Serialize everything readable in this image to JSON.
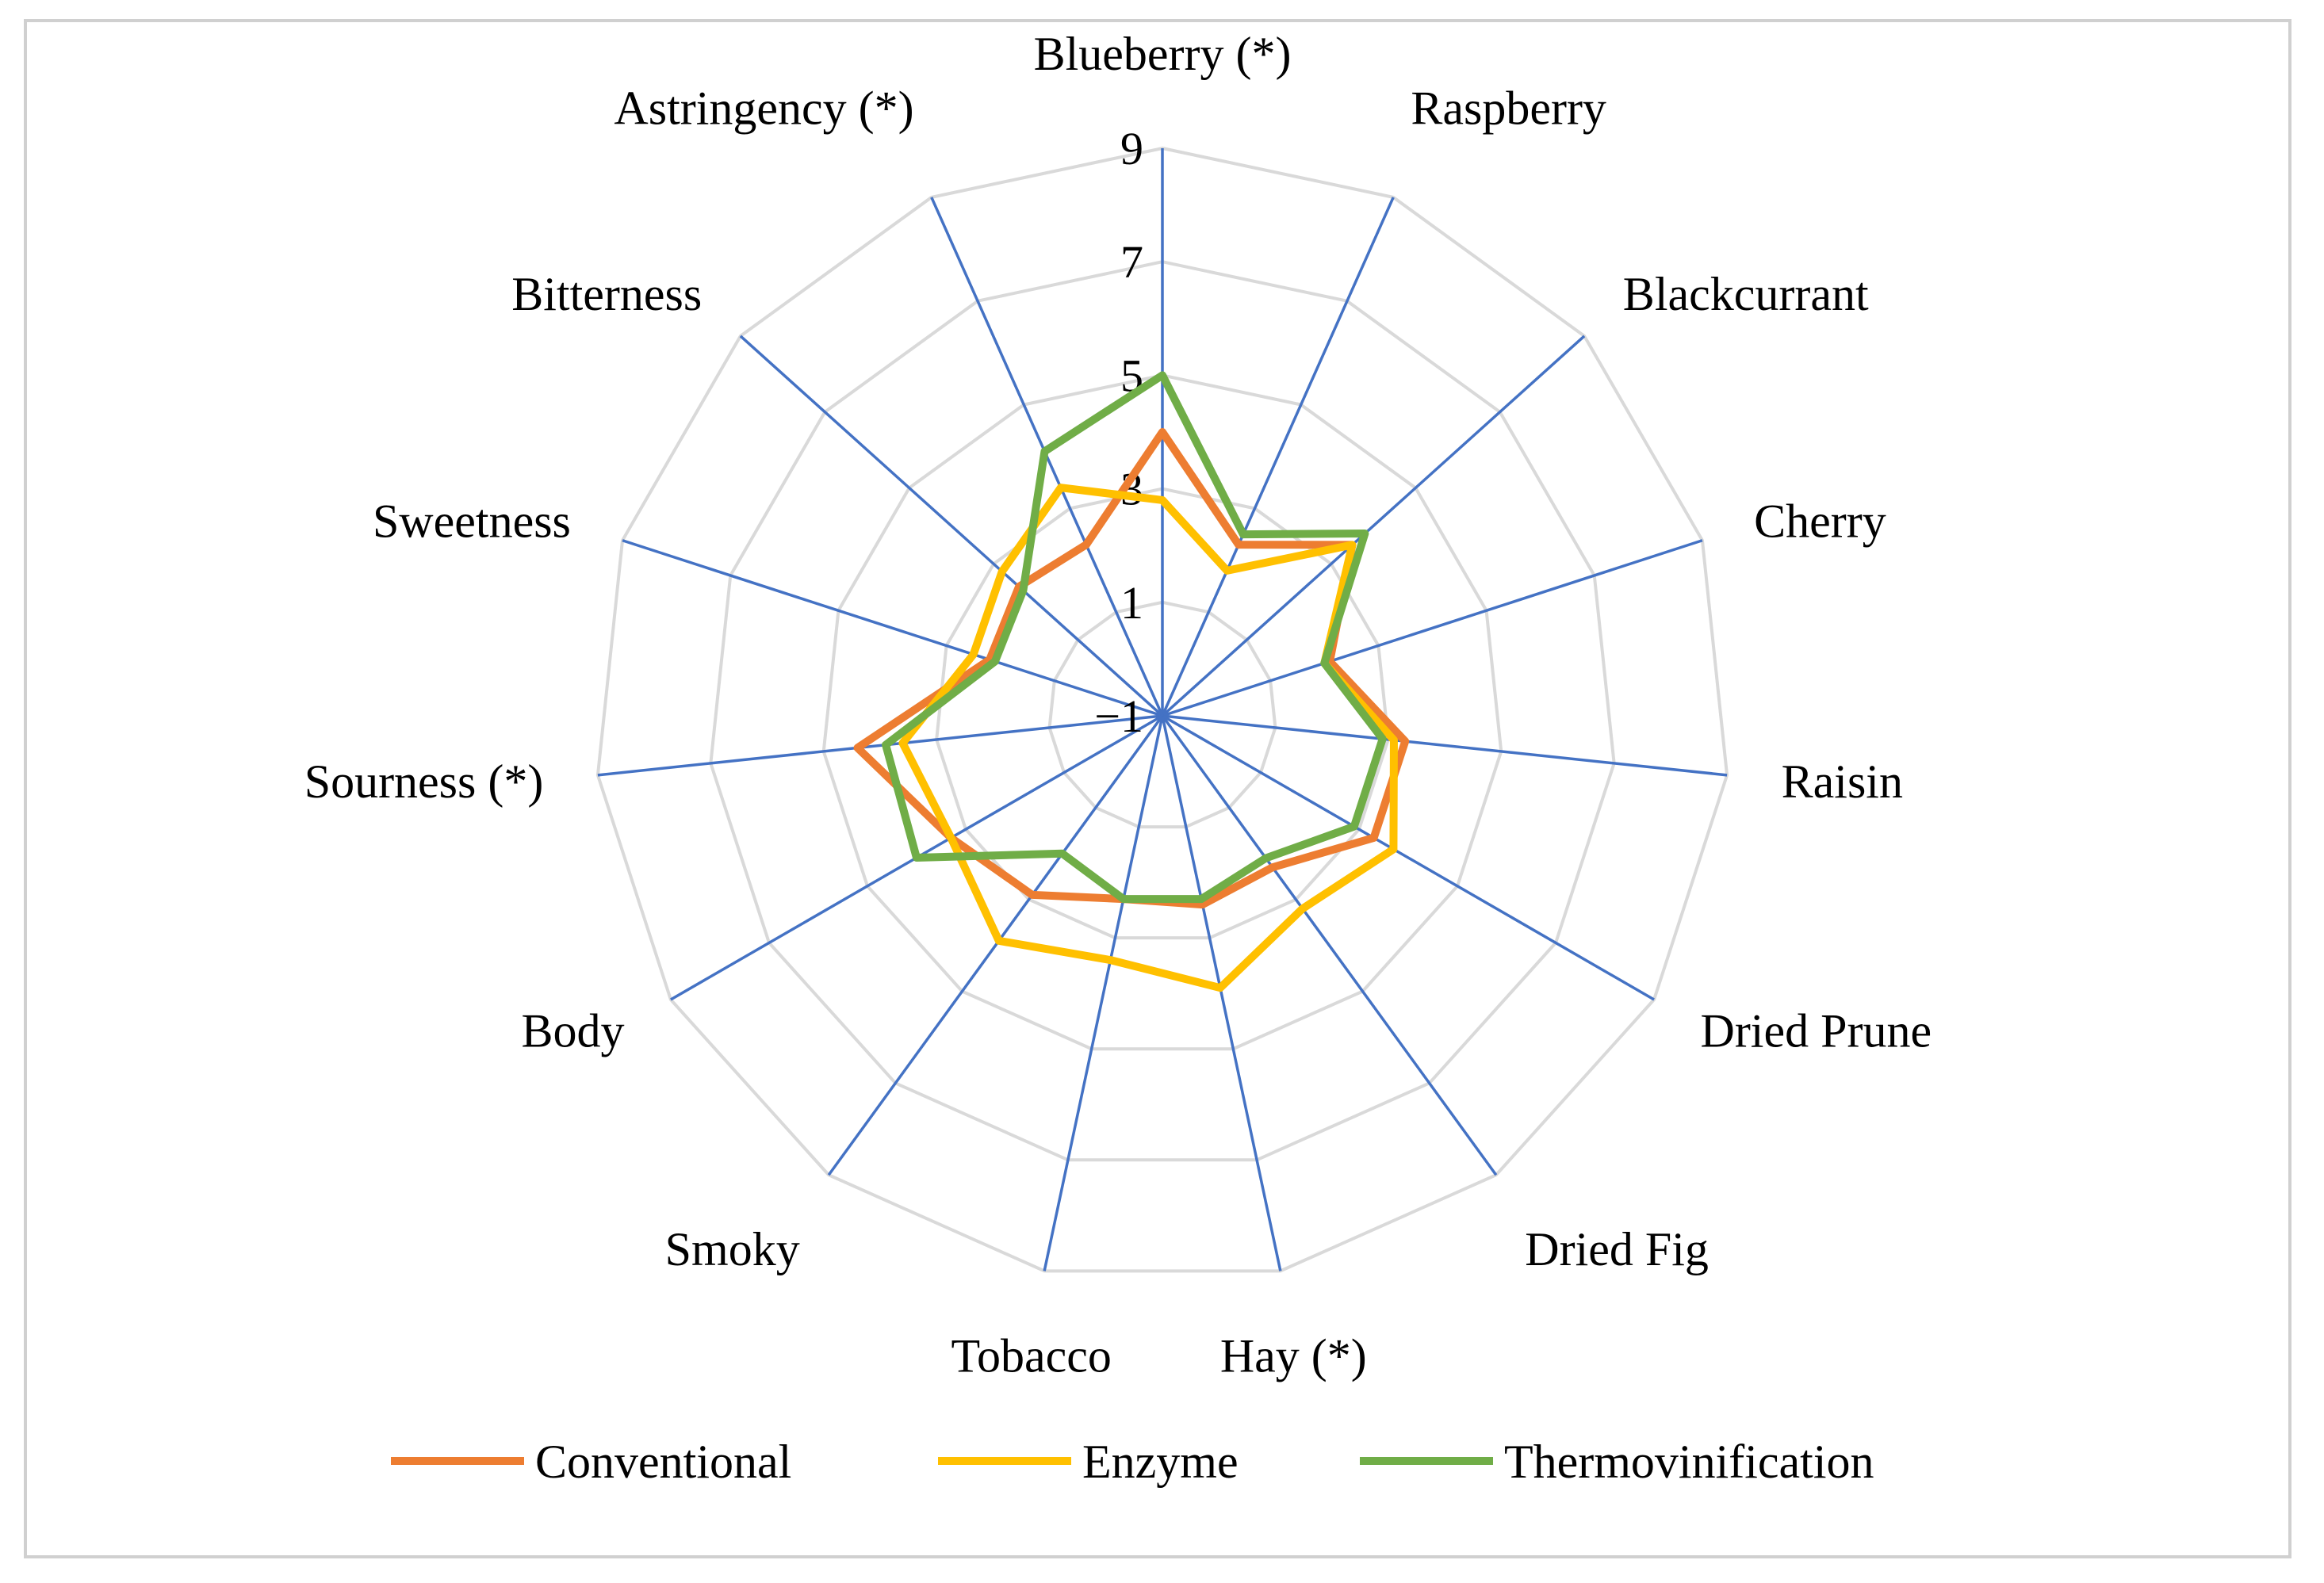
{
  "chart_data": {
    "type": "radar",
    "title": "",
    "categories": [
      "Blueberry (*)",
      "Raspberry",
      "Blackcurrant",
      "Cherry",
      "Raisin",
      "Dried Prune",
      "Dried Fig",
      "Hay (*)",
      "Tobacco",
      "Smoky",
      "Body",
      "Sourness (*)",
      "Sweetness",
      "Bitterness",
      "Astringency (*)"
    ],
    "rlim": [
      -1,
      9
    ],
    "ticks": [
      "-1",
      "1",
      "3",
      "5",
      "7",
      "9"
    ],
    "series": [
      {
        "name": "Conventional",
        "color": "#ED7D31",
        "values": [
          4.0,
          2.3,
          3.5,
          2.1,
          3.3,
          3.3,
          2.3,
          2.4,
          2.3,
          2.9,
          3.3,
          4.4,
          2.2,
          2.4,
          2.3
        ]
      },
      {
        "name": "Enzyme",
        "color": "#FFC000",
        "values": [
          2.8,
          1.8,
          3.5,
          2.0,
          3.1,
          3.7,
          3.2,
          3.9,
          3.4,
          3.9,
          3.3,
          3.6,
          2.5,
          2.8,
          3.4
        ]
      },
      {
        "name": "Thermovinification",
        "color": "#70AD47",
        "values": [
          5.0,
          2.5,
          3.8,
          2.0,
          2.9,
          2.9,
          2.1,
          2.3,
          2.3,
          2.0,
          4.0,
          3.9,
          2.1,
          2.3,
          4.1
        ]
      }
    ],
    "axis_color": "#4472C4",
    "grid_color": "#D9D9D9",
    "grid": true,
    "legend_position": "bottom"
  }
}
